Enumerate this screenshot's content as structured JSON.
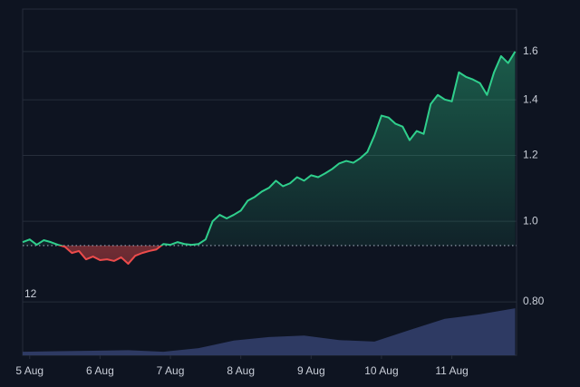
{
  "chart_data": {
    "type": "line",
    "log_scale": true,
    "grid": true,
    "baseline": 0.935,
    "up_color": "#2fcf8c",
    "down_color": "#ec4b4b",
    "x": [
      4.9,
      5.0,
      5.1,
      5.2,
      5.3,
      5.4,
      5.5,
      5.6,
      5.7,
      5.8,
      5.9,
      6.0,
      6.1,
      6.2,
      6.3,
      6.4,
      6.5,
      6.6,
      6.7,
      6.8,
      6.9,
      7.0,
      7.1,
      7.2,
      7.3,
      7.4,
      7.5,
      7.6,
      7.7,
      7.8,
      7.9,
      8.0,
      8.1,
      8.2,
      8.3,
      8.4,
      8.5,
      8.6,
      8.7,
      8.8,
      8.9,
      9.0,
      9.1,
      9.2,
      9.3,
      9.4,
      9.5,
      9.6,
      9.7,
      9.8,
      9.9,
      10.0,
      10.1,
      10.2,
      10.3,
      10.4,
      10.5,
      10.6,
      10.7,
      10.8,
      10.9,
      11.0,
      11.1,
      11.2,
      11.3,
      11.4,
      11.5,
      11.6,
      11.7,
      11.8,
      11.9
    ],
    "values": [
      0.944,
      0.951,
      0.937,
      0.949,
      0.944,
      0.937,
      0.932,
      0.916,
      0.921,
      0.9,
      0.907,
      0.898,
      0.9,
      0.896,
      0.905,
      0.889,
      0.909,
      0.916,
      0.921,
      0.925,
      0.939,
      0.937,
      0.944,
      0.939,
      0.937,
      0.939,
      0.951,
      1.0,
      1.018,
      1.008,
      1.018,
      1.03,
      1.059,
      1.07,
      1.086,
      1.097,
      1.119,
      1.102,
      1.111,
      1.13,
      1.119,
      1.136,
      1.13,
      1.142,
      1.156,
      1.174,
      1.182,
      1.176,
      1.191,
      1.212,
      1.268,
      1.34,
      1.333,
      1.31,
      1.3,
      1.252,
      1.284,
      1.274,
      1.384,
      1.419,
      1.401,
      1.394,
      1.511,
      1.492,
      1.481,
      1.466,
      1.419,
      1.511,
      1.58,
      1.55,
      1.6
    ],
    "xlim": [
      4.9,
      11.92
    ],
    "xticks": [
      {
        "value": 5,
        "label": "5 Aug"
      },
      {
        "value": 6,
        "label": "6 Aug"
      },
      {
        "value": 7,
        "label": "7 Aug"
      },
      {
        "value": 8,
        "label": "8 Aug"
      },
      {
        "value": 9,
        "label": "9 Aug"
      },
      {
        "value": 10,
        "label": "10 Aug"
      },
      {
        "value": 11,
        "label": "11 Aug"
      }
    ],
    "ylim": [
      0.69,
      1.8
    ],
    "yticks": [
      {
        "value": 0.8,
        "label": "0.80"
      },
      {
        "value": 1,
        "label": "1.0"
      },
      1.2,
      1.4,
      1.6
    ],
    "volume": {
      "x": [
        4.9,
        5.4,
        5.9,
        6.4,
        6.9,
        7.4,
        7.9,
        8.4,
        8.9,
        9.4,
        9.9,
        10.4,
        10.9,
        11.4,
        11.9
      ],
      "values": [
        0.7,
        0.8,
        0.9,
        1.0,
        0.7,
        1.4,
        2.9,
        3.6,
        3.9,
        3.0,
        2.7,
        5.0,
        7.2,
        8.1,
        9.3
      ],
      "color": "#2e3a63",
      "axis": "y2"
    },
    "y2lim": [
      0,
      12
    ],
    "y2ticks": [
      12
    ]
  }
}
